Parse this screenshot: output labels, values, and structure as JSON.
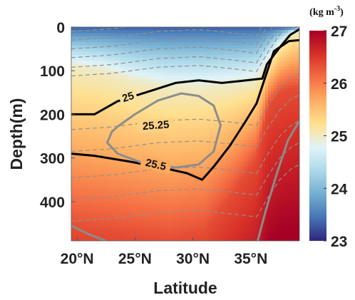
{
  "chart_data": {
    "type": "heatmap",
    "title": "",
    "xlabel": "Latitude",
    "ylabel": "Depth(m)",
    "x_ticks": [
      "20°N",
      "25°N",
      "30°N",
      "35°N"
    ],
    "x_tick_values": [
      20,
      25,
      30,
      35
    ],
    "xlim": [
      19.5,
      39.2
    ],
    "y_ticks": [
      "0",
      "100",
      "200",
      "300",
      "400"
    ],
    "y_tick_values": [
      0,
      100,
      200,
      300,
      400
    ],
    "ylim": [
      490,
      0
    ],
    "colorbar": {
      "unit_label": "(kg m",
      "unit_superscript": "-3",
      "unit_close": ")",
      "ticks": [
        "23",
        "24",
        "25",
        "26",
        "27"
      ],
      "tick_values": [
        23,
        24,
        25,
        26,
        27
      ],
      "range": [
        23,
        27
      ],
      "colormap": [
        "#30257e",
        "#4575b4",
        "#74add1",
        "#abd9e9",
        "#e0f3f8",
        "#fee090",
        "#fdae61",
        "#f46d43",
        "#d73027",
        "#a50026"
      ]
    },
    "contours": [
      {
        "level": "25",
        "color": "#000000",
        "points": [
          [
            19.5,
            200
          ],
          [
            21.5,
            200
          ],
          [
            23.5,
            170
          ],
          [
            26.5,
            145
          ],
          [
            28.5,
            128
          ],
          [
            30.5,
            122
          ],
          [
            32.5,
            128
          ],
          [
            34,
            124
          ],
          [
            36,
            118
          ],
          [
            36.4,
            85
          ],
          [
            37.4,
            50
          ],
          [
            38.4,
            18
          ],
          [
            39.2,
            5
          ]
        ]
      },
      {
        "level": "25.5",
        "color": "#000000",
        "points": [
          [
            19.5,
            290
          ],
          [
            21.5,
            295
          ],
          [
            24.5,
            308
          ],
          [
            27.5,
            323
          ],
          [
            29.5,
            335
          ],
          [
            30.8,
            350
          ],
          [
            31.8,
            320
          ],
          [
            33.2,
            272
          ],
          [
            34.5,
            218
          ],
          [
            35.5,
            175
          ],
          [
            37,
            55
          ],
          [
            38.3,
            32
          ],
          [
            39.2,
            30
          ]
        ]
      },
      {
        "level": "25.25",
        "color": "#8c8c8c",
        "points": [
          [
            23.5,
            228
          ],
          [
            25,
            200
          ],
          [
            27,
            168
          ],
          [
            29,
            152
          ],
          [
            30.5,
            158
          ],
          [
            31.8,
            180
          ],
          [
            32.4,
            225
          ],
          [
            31.8,
            285
          ],
          [
            30.5,
            315
          ],
          [
            28.5,
            322
          ],
          [
            25.5,
            310
          ],
          [
            23.5,
            290
          ],
          [
            22.6,
            265
          ],
          [
            23,
            240
          ],
          [
            23.5,
            228
          ]
        ]
      }
    ],
    "secondary_gray_lines": [
      [
        [
          19.5,
          455
        ],
        [
          21,
          475
        ],
        [
          22.5,
          490
        ]
      ],
      [
        [
          35.6,
          490
        ],
        [
          36.3,
          420
        ],
        [
          37.2,
          340
        ],
        [
          38.2,
          260
        ],
        [
          39.2,
          215
        ]
      ]
    ],
    "contour_labels": [
      {
        "text": "25",
        "x": 24.4,
        "y": 160,
        "rotation": -18
      },
      {
        "text": "25.25",
        "x": 26.8,
        "y": 225,
        "rotation": -4
      },
      {
        "text": "25.5",
        "x": 26.8,
        "y": 315,
        "rotation": 13
      }
    ],
    "dashed_isolines": {
      "color": "#909090",
      "shape": [
        [
          19.5,
          0
        ],
        [
          23,
          -6
        ],
        [
          27,
          -20
        ],
        [
          30.5,
          -24
        ],
        [
          33,
          -18
        ],
        [
          35.5,
          -10
        ],
        [
          36.5,
          -55
        ],
        [
          37.5,
          -95
        ],
        [
          38.5,
          -120
        ],
        [
          39.2,
          -130
        ]
      ],
      "offsets": [
        10,
        30,
        50,
        70,
        92,
        112,
        235,
        285,
        345,
        395,
        445
      ]
    },
    "density_field": {
      "surface_depth_profile": [
        [
          19.5,
          90
        ],
        [
          22,
          100
        ],
        [
          25,
          125
        ],
        [
          28,
          140
        ],
        [
          31,
          140
        ],
        [
          33.5,
          135
        ],
        [
          35.5,
          125
        ],
        [
          36.5,
          80
        ],
        [
          37.5,
          40
        ],
        [
          38.5,
          15
        ],
        [
          39.2,
          8
        ]
      ],
      "deep_depth_profile": [
        [
          19.5,
          460
        ],
        [
          22,
          470
        ],
        [
          25,
          480
        ],
        [
          28,
          490
        ],
        [
          31,
          470
        ],
        [
          33.5,
          380
        ],
        [
          35.5,
          300
        ],
        [
          36.5,
          180
        ],
        [
          37.5,
          150
        ],
        [
          38.5,
          140
        ],
        [
          39.2,
          140
        ]
      ]
    }
  }
}
